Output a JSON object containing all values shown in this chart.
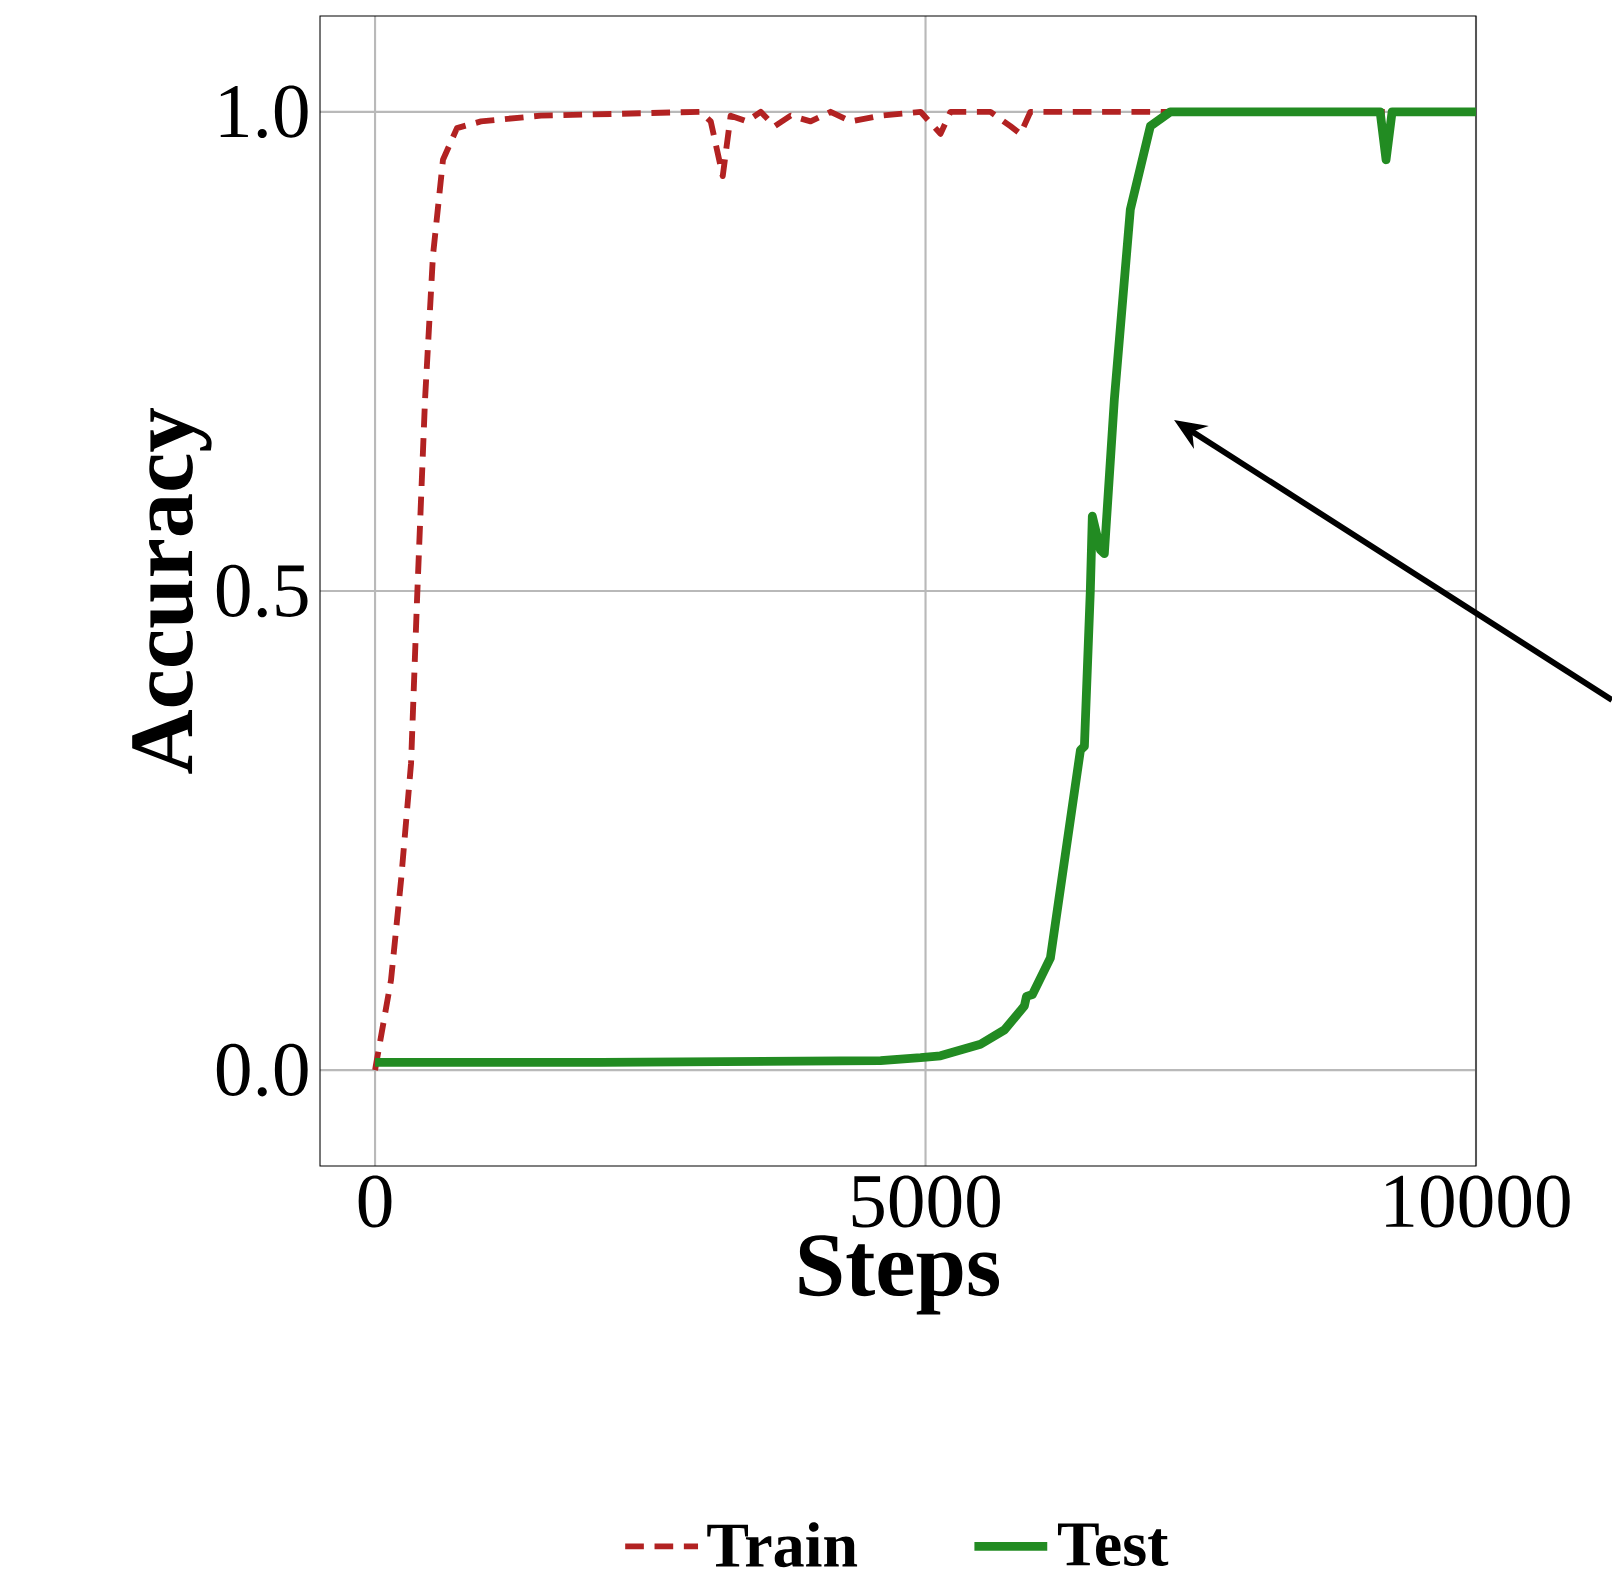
{
  "chart_data": {
    "type": "line",
    "xlabel": "Steps",
    "ylabel": "Accuracy",
    "xlim": [
      -500,
      10000
    ],
    "ylim": [
      -0.1,
      1.1
    ],
    "xticks": [
      0,
      5000,
      10000
    ],
    "yticks": [
      {
        "value": 0,
        "label": "0.0"
      },
      {
        "value": 0.5,
        "label": "0.5"
      },
      {
        "value": 1,
        "label": "1.0"
      }
    ],
    "grid": true,
    "legend": "bottom",
    "series": [
      {
        "name": "Train",
        "color": "#b22222",
        "line_style": "dashed",
        "x": [
          0,
          145,
          236,
          327,
          381,
          454,
          526,
          617,
          744,
          962,
          1506,
          2958,
          3049,
          3158,
          3230,
          3376,
          3503,
          3630,
          3775,
          3956,
          4138,
          4319,
          4592,
          4955,
          5136,
          5227,
          5590,
          5771,
          5862,
          5953,
          10000
        ],
        "values": [
          0,
          0.094,
          0.198,
          0.32,
          0.49,
          0.7,
          0.85,
          0.95,
          0.983,
          0.99,
          0.996,
          1.0,
          0.99,
          0.933,
          0.996,
          0.99,
          1.0,
          0.985,
          0.996,
          0.99,
          1.0,
          0.99,
          0.996,
          1.0,
          0.977,
          1.0,
          1.0,
          0.985,
          0.977,
          1.0,
          1.0
        ]
      },
      {
        "name": "Test",
        "color": "#228b22",
        "line_style": "solid",
        "x": [
          0,
          2051,
          4592,
          4955,
          5136,
          5499,
          5717,
          5898,
          5917,
          5971,
          6134,
          6407,
          6443,
          6497,
          6515,
          6588,
          6624,
          6715,
          6860,
          7042,
          7223,
          9129,
          9183,
          9238,
          10000
        ],
        "values": [
          0.008,
          0.008,
          0.01,
          0.013,
          0.015,
          0.027,
          0.042,
          0.067,
          0.077,
          0.079,
          0.117,
          0.334,
          0.338,
          0.501,
          0.578,
          0.543,
          0.539,
          0.7,
          0.898,
          0.985,
          1.0,
          1.0,
          0.95,
          1.0,
          1.0
        ]
      }
    ]
  }
}
